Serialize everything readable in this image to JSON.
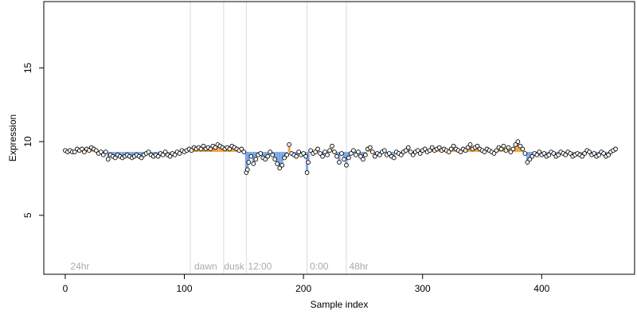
{
  "chart_data": {
    "type": "scatter",
    "title": "",
    "xlabel": "Sample index",
    "ylabel": "Expression",
    "xlim": [
      -18,
      478
    ],
    "ylim": [
      1,
      19.5
    ],
    "xticks": [
      0,
      100,
      200,
      300,
      400
    ],
    "yticks": [
      5,
      10,
      15
    ],
    "grid": false,
    "region_lines": [
      105,
      133,
      152,
      203,
      236
    ],
    "region_labels": [
      {
        "x": 3,
        "label": "24hr"
      },
      {
        "x": 107,
        "label": "dawn"
      },
      {
        "x": 132,
        "label": "dusk"
      },
      {
        "x": 152,
        "label": "12:00"
      },
      {
        "x": 204,
        "label": "0:00"
      },
      {
        "x": 237,
        "label": "48hr"
      }
    ],
    "baseline": 9.3,
    "colors": {
      "point_stroke": "#000000",
      "point_fill": "#ffffff",
      "above_baseline_bar": "#f5a442",
      "below_baseline_bar": "#7aa6e6",
      "region_line": "#d9d9d9",
      "region_label": "#aaaaaa"
    },
    "points": [
      [
        0,
        9.4
      ],
      [
        2,
        9.3
      ],
      [
        4,
        9.4
      ],
      [
        6,
        9.3
      ],
      [
        8,
        9.3
      ],
      [
        10,
        9.5
      ],
      [
        12,
        9.4
      ],
      [
        14,
        9.5
      ],
      [
        16,
        9.3
      ],
      [
        18,
        9.5
      ],
      [
        20,
        9.4
      ],
      [
        22,
        9.6
      ],
      [
        24,
        9.5
      ],
      [
        26,
        9.4
      ],
      [
        28,
        9.2
      ],
      [
        30,
        9.3
      ],
      [
        32,
        9.1
      ],
      [
        34,
        9.3
      ],
      [
        36,
        8.8
      ],
      [
        38,
        9.1
      ],
      [
        40,
        9.0
      ],
      [
        42,
        8.9
      ],
      [
        44,
        9.1
      ],
      [
        46,
        9.0
      ],
      [
        48,
        8.9
      ],
      [
        50,
        9.0
      ],
      [
        52,
        9.1
      ],
      [
        54,
        9.0
      ],
      [
        56,
        8.9
      ],
      [
        58,
        9.0
      ],
      [
        60,
        9.1
      ],
      [
        62,
        9.0
      ],
      [
        64,
        8.9
      ],
      [
        66,
        9.1
      ],
      [
        68,
        9.2
      ],
      [
        70,
        9.3
      ],
      [
        72,
        9.1
      ],
      [
        74,
        9.0
      ],
      [
        76,
        9.1
      ],
      [
        78,
        9.0
      ],
      [
        80,
        9.2
      ],
      [
        82,
        9.1
      ],
      [
        84,
        9.3
      ],
      [
        86,
        9.1
      ],
      [
        88,
        9.0
      ],
      [
        90,
        9.2
      ],
      [
        92,
        9.1
      ],
      [
        94,
        9.3
      ],
      [
        96,
        9.2
      ],
      [
        98,
        9.4
      ],
      [
        100,
        9.3
      ],
      [
        102,
        9.4
      ],
      [
        104,
        9.5
      ],
      [
        106,
        9.4
      ],
      [
        108,
        9.6
      ],
      [
        110,
        9.5
      ],
      [
        112,
        9.6
      ],
      [
        114,
        9.5
      ],
      [
        116,
        9.7
      ],
      [
        118,
        9.5
      ],
      [
        120,
        9.6
      ],
      [
        122,
        9.5
      ],
      [
        124,
        9.7
      ],
      [
        126,
        9.6
      ],
      [
        128,
        9.8
      ],
      [
        130,
        9.7
      ],
      [
        132,
        9.6
      ],
      [
        134,
        9.5
      ],
      [
        136,
        9.6
      ],
      [
        138,
        9.5
      ],
      [
        140,
        9.7
      ],
      [
        142,
        9.6
      ],
      [
        144,
        9.5
      ],
      [
        146,
        9.4
      ],
      [
        148,
        9.5
      ],
      [
        150,
        9.3
      ],
      [
        152,
        7.9
      ],
      [
        153,
        8.1
      ],
      [
        154,
        8.6
      ],
      [
        156,
        9.0
      ],
      [
        158,
        8.5
      ],
      [
        160,
        8.8
      ],
      [
        162,
        9.1
      ],
      [
        164,
        9.2
      ],
      [
        166,
        8.9
      ],
      [
        168,
        8.8
      ],
      [
        170,
        9.0
      ],
      [
        172,
        9.3
      ],
      [
        174,
        9.1
      ],
      [
        176,
        8.8
      ],
      [
        178,
        8.5
      ],
      [
        180,
        8.2
      ],
      [
        182,
        8.4
      ],
      [
        184,
        8.9
      ],
      [
        186,
        9.1
      ],
      [
        188,
        9.8
      ],
      [
        190,
        9.2
      ],
      [
        192,
        9.1
      ],
      [
        194,
        9.0
      ],
      [
        196,
        9.3
      ],
      [
        198,
        9.1
      ],
      [
        200,
        9.2
      ],
      [
        202,
        9.0
      ],
      [
        203,
        7.9
      ],
      [
        204,
        8.6
      ],
      [
        206,
        9.4
      ],
      [
        208,
        9.2
      ],
      [
        210,
        9.3
      ],
      [
        212,
        9.5
      ],
      [
        214,
        9.2
      ],
      [
        216,
        9.0
      ],
      [
        218,
        9.3
      ],
      [
        220,
        9.1
      ],
      [
        222,
        9.4
      ],
      [
        224,
        9.7
      ],
      [
        226,
        9.3
      ],
      [
        228,
        9.0
      ],
      [
        230,
        8.6
      ],
      [
        232,
        9.2
      ],
      [
        234,
        8.8
      ],
      [
        236,
        8.4
      ],
      [
        238,
        8.9
      ],
      [
        240,
        9.2
      ],
      [
        242,
        9.4
      ],
      [
        244,
        9.1
      ],
      [
        246,
        9.3
      ],
      [
        248,
        9.0
      ],
      [
        250,
        8.8
      ],
      [
        252,
        9.1
      ],
      [
        254,
        9.5
      ],
      [
        256,
        9.6
      ],
      [
        258,
        9.3
      ],
      [
        260,
        9.0
      ],
      [
        262,
        9.2
      ],
      [
        264,
        9.1
      ],
      [
        266,
        9.3
      ],
      [
        268,
        9.4
      ],
      [
        270,
        9.1
      ],
      [
        272,
        9.2
      ],
      [
        274,
        9.0
      ],
      [
        276,
        8.9
      ],
      [
        278,
        9.3
      ],
      [
        280,
        9.2
      ],
      [
        282,
        9.1
      ],
      [
        284,
        9.3
      ],
      [
        286,
        9.4
      ],
      [
        288,
        9.6
      ],
      [
        290,
        9.3
      ],
      [
        292,
        9.1
      ],
      [
        294,
        9.3
      ],
      [
        296,
        9.4
      ],
      [
        298,
        9.2
      ],
      [
        300,
        9.4
      ],
      [
        302,
        9.5
      ],
      [
        304,
        9.3
      ],
      [
        306,
        9.4
      ],
      [
        308,
        9.6
      ],
      [
        310,
        9.4
      ],
      [
        312,
        9.5
      ],
      [
        314,
        9.6
      ],
      [
        316,
        9.4
      ],
      [
        318,
        9.5
      ],
      [
        320,
        9.4
      ],
      [
        322,
        9.3
      ],
      [
        324,
        9.5
      ],
      [
        326,
        9.7
      ],
      [
        328,
        9.5
      ],
      [
        330,
        9.4
      ],
      [
        332,
        9.3
      ],
      [
        334,
        9.5
      ],
      [
        336,
        9.4
      ],
      [
        338,
        9.6
      ],
      [
        340,
        9.8
      ],
      [
        342,
        9.5
      ],
      [
        344,
        9.6
      ],
      [
        346,
        9.7
      ],
      [
        348,
        9.5
      ],
      [
        350,
        9.4
      ],
      [
        352,
        9.3
      ],
      [
        354,
        9.5
      ],
      [
        356,
        9.4
      ],
      [
        358,
        9.3
      ],
      [
        360,
        9.2
      ],
      [
        362,
        9.4
      ],
      [
        364,
        9.6
      ],
      [
        366,
        9.5
      ],
      [
        368,
        9.7
      ],
      [
        370,
        9.4
      ],
      [
        372,
        9.6
      ],
      [
        374,
        9.3
      ],
      [
        376,
        9.5
      ],
      [
        378,
        9.8
      ],
      [
        380,
        10.0
      ],
      [
        382,
        9.7
      ],
      [
        384,
        9.5
      ],
      [
        386,
        9.2
      ],
      [
        388,
        8.6
      ],
      [
        390,
        8.8
      ],
      [
        392,
        9.0
      ],
      [
        394,
        9.2
      ],
      [
        396,
        9.1
      ],
      [
        398,
        9.3
      ],
      [
        400,
        9.1
      ],
      [
        402,
        9.2
      ],
      [
        404,
        9.0
      ],
      [
        406,
        9.1
      ],
      [
        408,
        9.3
      ],
      [
        410,
        9.2
      ],
      [
        412,
        9.0
      ],
      [
        414,
        9.1
      ],
      [
        416,
        9.3
      ],
      [
        418,
        9.2
      ],
      [
        420,
        9.1
      ],
      [
        422,
        9.3
      ],
      [
        424,
        9.2
      ],
      [
        426,
        9.0
      ],
      [
        428,
        9.1
      ],
      [
        430,
        9.2
      ],
      [
        432,
        9.1
      ],
      [
        434,
        9.0
      ],
      [
        436,
        9.2
      ],
      [
        438,
        9.4
      ],
      [
        440,
        9.3
      ],
      [
        442,
        9.1
      ],
      [
        444,
        9.2
      ],
      [
        446,
        9.0
      ],
      [
        448,
        9.1
      ],
      [
        450,
        9.3
      ],
      [
        452,
        9.2
      ],
      [
        454,
        9.0
      ],
      [
        456,
        9.1
      ],
      [
        458,
        9.3
      ],
      [
        460,
        9.4
      ],
      [
        462,
        9.5
      ]
    ]
  }
}
